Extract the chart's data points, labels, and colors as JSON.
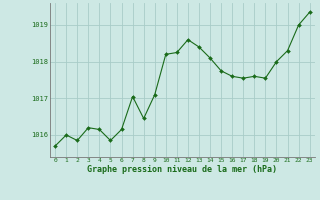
{
  "x": [
    0,
    1,
    2,
    3,
    4,
    5,
    6,
    7,
    8,
    9,
    10,
    11,
    12,
    13,
    14,
    15,
    16,
    17,
    18,
    19,
    20,
    21,
    22,
    23
  ],
  "y": [
    1015.7,
    1016.0,
    1015.85,
    1016.2,
    1016.15,
    1015.85,
    1016.15,
    1017.05,
    1016.45,
    1017.1,
    1018.2,
    1018.25,
    1018.6,
    1018.4,
    1018.1,
    1017.75,
    1017.6,
    1017.55,
    1017.6,
    1017.55,
    1018.0,
    1018.3,
    1019.0,
    1019.35
  ],
  "line_color": "#1a6b1a",
  "marker_color": "#1a6b1a",
  "bg_color": "#cde8e4",
  "grid_color": "#a8ccc8",
  "xlabel": "Graphe pression niveau de la mer (hPa)",
  "xlabel_color": "#1a6b1a",
  "tick_color": "#1a6b1a",
  "ylim": [
    1015.4,
    1019.6
  ],
  "yticks": [
    1016,
    1017,
    1018,
    1019
  ],
  "xticks": [
    0,
    1,
    2,
    3,
    4,
    5,
    6,
    7,
    8,
    9,
    10,
    11,
    12,
    13,
    14,
    15,
    16,
    17,
    18,
    19,
    20,
    21,
    22,
    23
  ],
  "axis_color": "#555555",
  "figsize": [
    3.2,
    2.0
  ],
  "dpi": 100
}
